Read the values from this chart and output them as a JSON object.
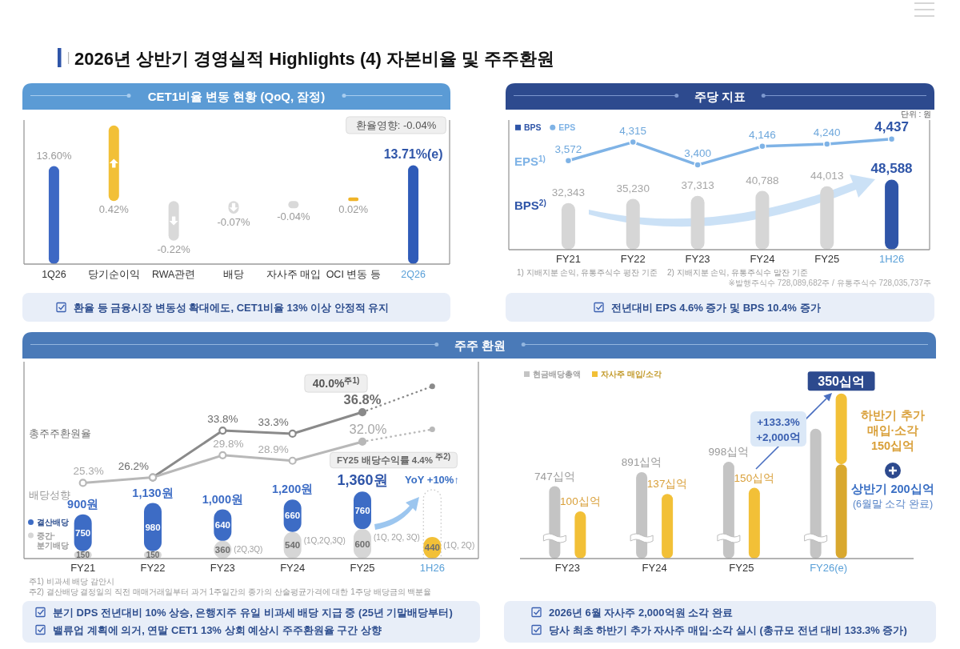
{
  "chart_data": [
    {
      "type": "other",
      "title": "2026년 상반기 경영실적 Highlights (4) 자본비율 및 주주환원"
    },
    {
      "type": "bar",
      "title": "CET1비율 변동 현황 (QoQ, 잠정)",
      "categories": [
        "1Q26",
        "당기순이익",
        "RWA관련",
        "배당",
        "자사주 매입",
        "OCI 변동 등",
        "2Q26"
      ],
      "series": [
        {
          "type": "bar",
          "colors": [
            "#3d68c4",
            null,
            null,
            null,
            null,
            null,
            "#2f5bb8"
          ],
          "values": [
            13.6,
            null,
            null,
            null,
            null,
            null,
            13.71
          ],
          "value_labels": [
            "13.60%",
            null,
            null,
            null,
            null,
            null,
            "13.71%(e)"
          ]
        },
        {
          "type": "bar",
          "axis": "y2",
          "colors": [
            null,
            "#f2c037",
            "#d9d9d9",
            "#d9d9d9",
            "#d9d9d9",
            "#f0b429",
            null
          ],
          "values": [
            null,
            0.42,
            -0.22,
            -0.07,
            -0.04,
            0.02,
            null
          ],
          "value_labels": [
            null,
            "0.42%",
            "-0.22%",
            "-0.07%",
            "-0.04%",
            "0.02%",
            null
          ]
        }
      ],
      "ylim": [
        0,
        20
      ],
      "y2lim": [
        -0.35,
        0.45
      ],
      "tick_labels": "x",
      "annotations": [
        "환율영향: -0.04%",
        "환율 등 금융시장 변동성 확대에도, CET1비율 13% 이상 안정적 유지"
      ]
    },
    {
      "type": "bar",
      "title": "주당 지표",
      "categories": [
        "FY21",
        "FY22",
        "FY23",
        "FY24",
        "FY25",
        "1H26"
      ],
      "series": [
        {
          "name": "BPS",
          "type": "bar",
          "color": "#2f55a8",
          "colors": [
            "#d6d6d6",
            "#d6d6d6",
            "#d6d6d6",
            "#d6d6d6",
            "#d6d6d6",
            "#2f55a8"
          ],
          "values": [
            32343,
            35230,
            37313,
            40788,
            44013,
            48588
          ],
          "value_labels": [
            "32,343",
            "35,230",
            "37,313",
            "40,788",
            "44,013",
            "48,588"
          ]
        },
        {
          "name": "EPS",
          "type": "line",
          "axis": "y2",
          "color": "#7fb3e6",
          "values": [
            3572,
            4315,
            3400,
            4146,
            4240,
            4437
          ],
          "value_labels": [
            "3,572",
            "4,315",
            "3,400",
            "4,146",
            "4,240",
            "4,437"
          ]
        }
      ],
      "ylim": [
        0,
        90000
      ],
      "y2lim": [
        0,
        5200
      ],
      "marker": "circle",
      "legend": "top left",
      "tick_labels": "x",
      "annotations": [
        "단위 : 원",
        "EPS$^{1)}$",
        "BPS$^{2)}$",
        "1) 지배지분 손익, 유통주식수 평잔 기준",
        "2) 지배지분 손익, 유통주식수 말잔 기준",
        "※발행주식수 728,089,682주 / 유통주식수 728,035,737주",
        "전년대비 EPS 4.6% 증가 및 BPS 10.4% 증가"
      ]
    },
    {
      "type": "bar",
      "title": "주주 환원",
      "categories": [
        "FY21",
        "FY22",
        "FY23",
        "FY24",
        "FY25",
        "1H26"
      ],
      "stacked": true,
      "series": [
        {
          "name": "중간·분기배당",
          "type": "bar",
          "color": "#d6d6d6",
          "colors": [
            "#d6d6d6",
            "#d6d6d6",
            "#d6d6d6",
            "#d6d6d6",
            "#d6d6d6",
            "#f2c037"
          ],
          "values": [
            150,
            150,
            360,
            540,
            600,
            440
          ],
          "value_labels": [
            "150",
            "150",
            "360",
            "540",
            "600",
            "440"
          ]
        },
        {
          "name": "결산배당",
          "type": "bar",
          "color": "#3d6cc5",
          "values": [
            750,
            980,
            640,
            660,
            760,
            null
          ],
          "value_labels": [
            "750",
            "980",
            "640",
            "660",
            "760",
            null
          ]
        },
        {
          "name": "총주주환원율",
          "type": "line",
          "axis": "y2",
          "color": "#8a8a8a",
          "values": [
            null,
            26.2,
            33.8,
            33.3,
            36.8,
            null
          ],
          "value_labels": [
            null,
            "26.2%",
            "33.8%",
            "33.3%",
            "36.8%",
            null
          ]
        },
        {
          "name": "배당성향",
          "type": "line",
          "axis": "y2",
          "color": "#b8b8b8",
          "values": [
            25.3,
            26.2,
            29.8,
            28.9,
            32.0,
            null
          ],
          "value_labels": [
            "25.3%",
            null,
            "29.8%",
            "28.9%",
            "32.0%",
            null
          ]
        },
        {
          "type": "line",
          "axis": "y2",
          "line_style": "dotted",
          "color": "#8a8a8a",
          "values": [
            null,
            null,
            null,
            null,
            36.8,
            41
          ]
        },
        {
          "type": "line",
          "axis": "y2",
          "line_style": "dotted",
          "color": "#b8b8b8",
          "values": [
            null,
            null,
            null,
            null,
            32.0,
            34
          ]
        }
      ],
      "ylim": [
        0,
        4000
      ],
      "y2lim": [
        13,
        45
      ],
      "marker": "circle",
      "legend": "left",
      "tick_labels": "x",
      "totals": [
        "900원",
        "1,130원",
        "1,000원",
        "1,200원",
        "1,360원",
        null
      ],
      "annotations": [
        {
          "text": "(2Q,3Q)",
          "x": "FY23",
          "y": 360
        },
        {
          "text": "(1Q,2Q,3Q)",
          "x": "FY24",
          "y": 540
        },
        {
          "text": "(1Q, 2Q, 3Q)",
          "x": "FY25",
          "y": 600
        },
        {
          "text": "(1Q, 2Q)",
          "x": "1H26",
          "y": 440
        },
        "40.0%$^{주1)}$",
        "FY25 배당수익률 4.4% $^{주2)}$",
        "YoY +10%↑",
        "주1) 비과세 배당 감안시",
        "주2) 결산배당 결정일의 직전 매매거래일부터 과거 1주일간의 종가의 산술평균가격에 대한 1주당 배당금의 백분율",
        "분기 DPS 전년대비 10% 상승, 은행지주 유일 비과세 배당 지급 중 (25년 기말배당부터)",
        "밸류업 계획에 의거, 연말 CET1 13% 상회 예상시 주주환원율 구간 상향"
      ]
    },
    {
      "type": "bar",
      "categories": [
        "FY23",
        "FY24",
        "FY25",
        "FY26(e)"
      ],
      "stacked": true,
      "series": [
        {
          "name": "현금배당총액",
          "type": "bar",
          "axis": "y2",
          "color": "#c4c4c4",
          "values": [
            747,
            891,
            998,
            1340
          ],
          "value_labels": [
            "747십억",
            "891십억",
            "998십억",
            null
          ]
        },
        {
          "name": "자사주 매입/소각",
          "type": "bar",
          "color": "#f2c037",
          "colors": [
            "#f2c037",
            "#f2c037",
            "#f2c037",
            "#d9a82e"
          ],
          "values": [
            100,
            137,
            150,
            200
          ],
          "value_labels": [
            "100십억",
            "137십억",
            "150십억",
            null
          ]
        },
        {
          "type": "bar",
          "color": "#f2c037",
          "values": [
            null,
            null,
            null,
            150
          ]
        }
      ],
      "legend": "top left",
      "tick_labels": "x",
      "totals": [
        null,
        null,
        null,
        "350십억"
      ],
      "annotations": [
        "+133.3%",
        "+2,000억",
        "하반기 추가 매입·소각 150십억",
        "상반기 200십억",
        "(6월말 소각 완료)",
        "2026년 6월 자사주 2,000억원 소각 완료",
        "당사 최초 하반기 추가 자사주 매입·소각 실시 (총규모 전년 대비 133.3% 증가)"
      ]
    }
  ]
}
